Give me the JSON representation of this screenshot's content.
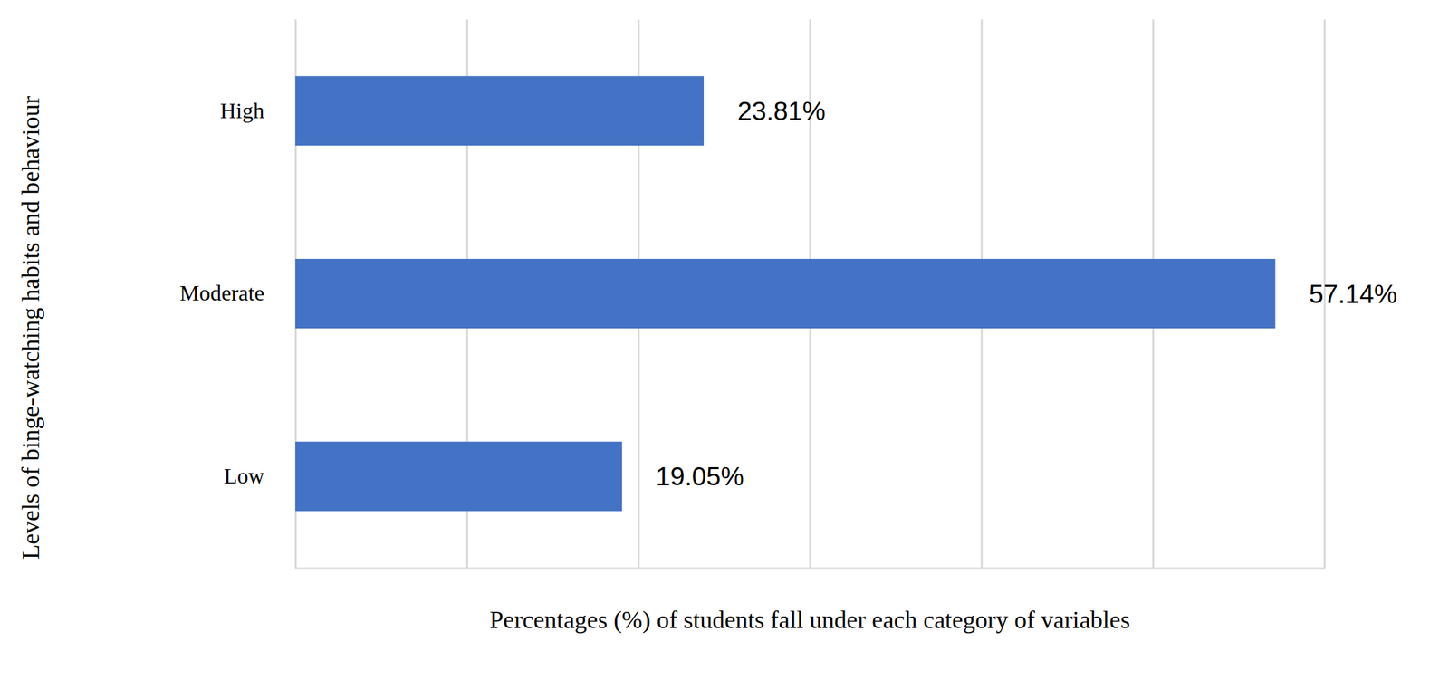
{
  "chart_data": {
    "type": "bar",
    "orientation": "horizontal",
    "x_label": "Percentages (%) of students fall under each category of variables",
    "y_label": "Levels of binge-watching habits and behaviour",
    "categories": [
      "High",
      "Moderate",
      "Low"
    ],
    "values": [
      23.81,
      57.14,
      19.05
    ],
    "value_labels": [
      "23.81%",
      "57.14%",
      "19.05%"
    ],
    "color": "#4472c4",
    "xlim": [
      0,
      60
    ],
    "xticks": [
      0,
      10,
      20,
      30,
      40,
      50,
      60
    ],
    "grid": true,
    "data_labels": true,
    "tick_labels": "y"
  }
}
